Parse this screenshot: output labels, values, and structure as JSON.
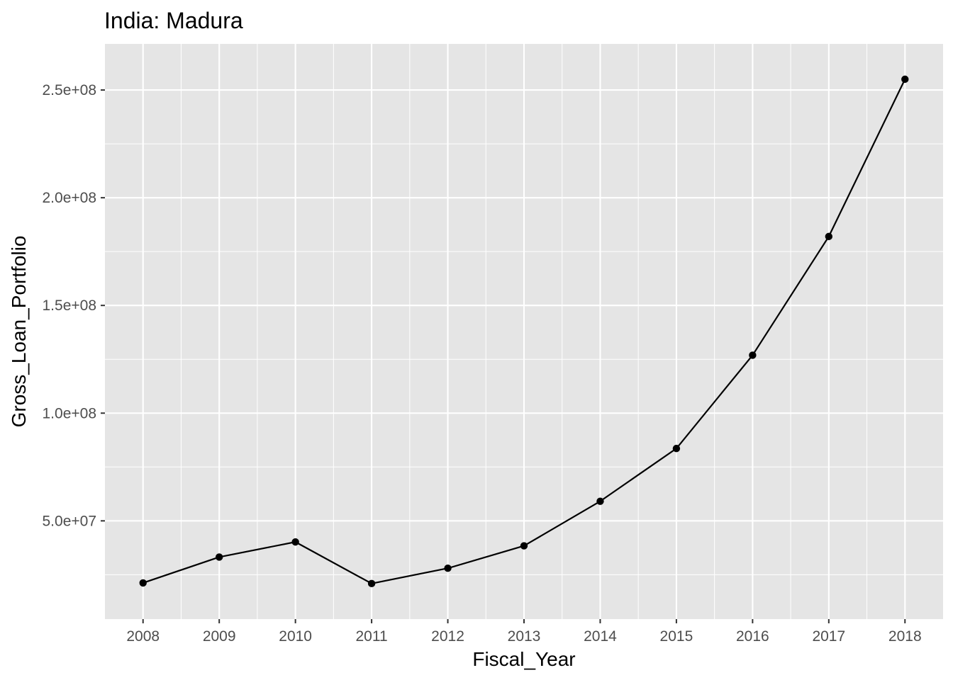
{
  "chart_data": {
    "type": "line",
    "title": "India:  Madura",
    "xlabel": "Fiscal_Year",
    "ylabel": "Gross_Loan_Portfolio",
    "x": [
      2008,
      2009,
      2010,
      2011,
      2012,
      2013,
      2014,
      2015,
      2016,
      2017,
      2018
    ],
    "series": [
      {
        "values": [
          21200000,
          33200000,
          40200000,
          20900000,
          28000000,
          38400000,
          59100000,
          83600000,
          126900000,
          182000000,
          255000000
        ]
      }
    ],
    "xlim": [
      2007.5,
      2018.5
    ],
    "ylim": [
      4400000,
      271400000
    ],
    "x_ticks": [
      "2008",
      "2009",
      "2010",
      "2011",
      "2012",
      "2013",
      "2014",
      "2015",
      "2016",
      "2017",
      "2018"
    ],
    "y_ticks": [
      {
        "value": 50000000,
        "label": "5.0e+07"
      },
      {
        "value": 100000000,
        "label": "1.0e+08"
      },
      {
        "value": 150000000,
        "label": "1.5e+08"
      },
      {
        "value": 200000000,
        "label": "2.0e+08"
      },
      {
        "value": 250000000,
        "label": "2.5e+08"
      }
    ],
    "grid": true,
    "legend": "none",
    "colors": {
      "panel_background": "#e5e5e5",
      "grid": "#ffffff",
      "line": "#000000",
      "point": "#000000",
      "tick_text": "#4d4d4d",
      "tick_mark": "#333333"
    }
  }
}
